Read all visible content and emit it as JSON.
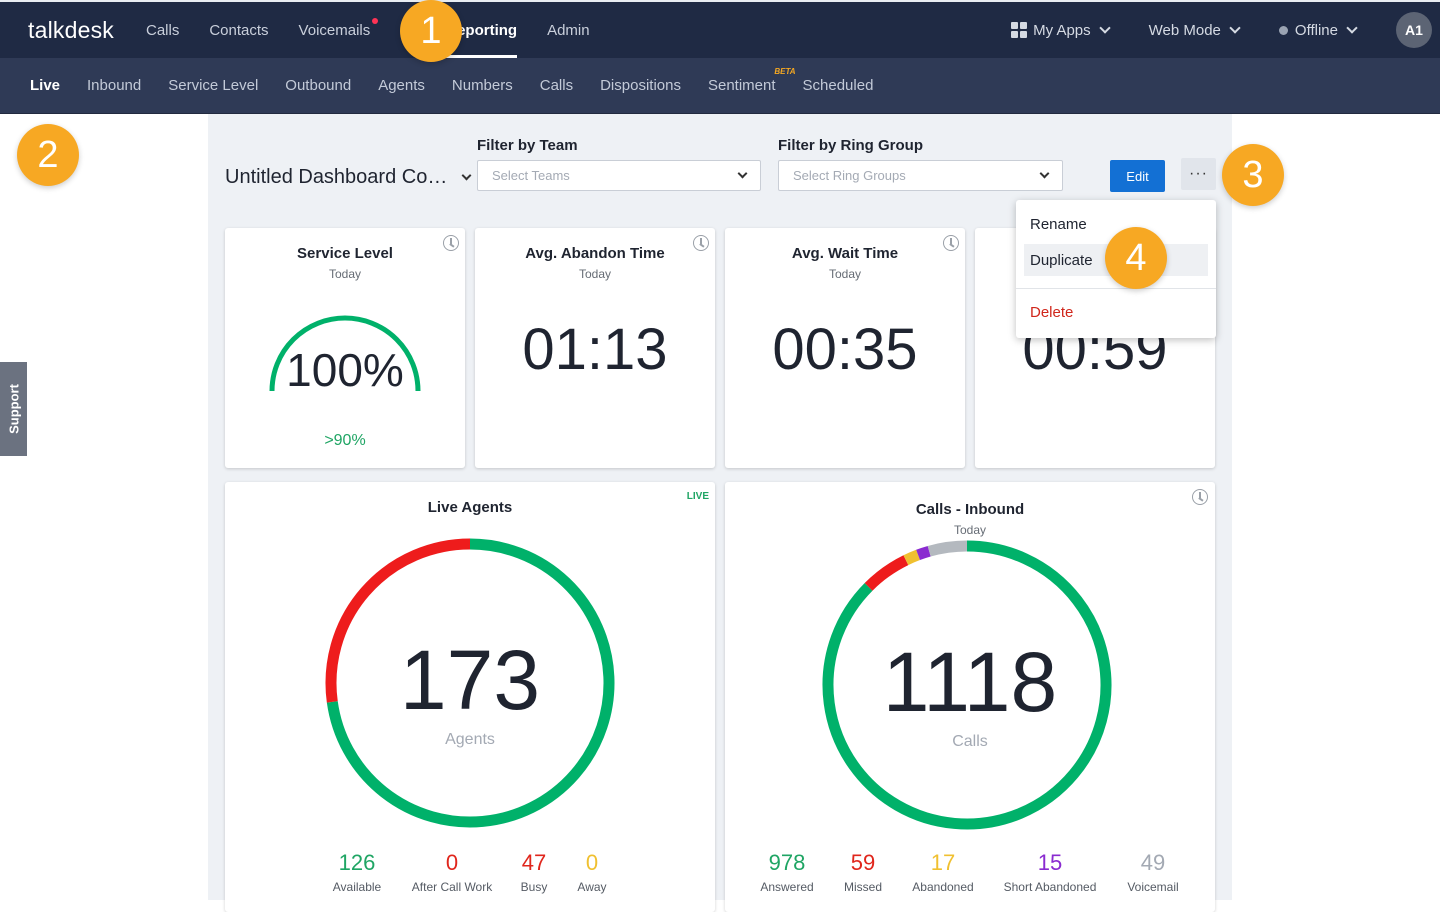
{
  "topbar": {
    "logo": "talkdesk",
    "nav": [
      {
        "label": "Calls",
        "active": false
      },
      {
        "label": "Contacts",
        "active": false
      },
      {
        "label": "Voicemails",
        "active": false,
        "notification_dot": true
      },
      {
        "label": "Reporting",
        "active": true
      },
      {
        "label": "Admin",
        "active": false
      }
    ],
    "my_apps": "My Apps",
    "web_mode": "Web Mode",
    "status": "Offline",
    "avatar": "A1"
  },
  "subnav": {
    "items": [
      {
        "label": "Live",
        "active": true
      },
      {
        "label": "Inbound"
      },
      {
        "label": "Service Level"
      },
      {
        "label": "Outbound"
      },
      {
        "label": "Agents"
      },
      {
        "label": "Numbers"
      },
      {
        "label": "Calls"
      },
      {
        "label": "Dispositions"
      },
      {
        "label": "Sentiment",
        "badge": "BETA"
      },
      {
        "label": "Scheduled"
      }
    ]
  },
  "support_label": "Support",
  "dashboard": {
    "title": "Untitled Dashboard Co…",
    "filter_team_label": "Filter by Team",
    "filter_team_placeholder": "Select Teams",
    "filter_ring_label": "Filter by Ring Group",
    "filter_ring_placeholder": "Select Ring Groups",
    "edit_label": "Edit",
    "more_label": "···"
  },
  "menu": {
    "rename": "Rename",
    "duplicate": "Duplicate",
    "delete": "Delete"
  },
  "cards": {
    "service_level": {
      "title": "Service Level",
      "sub": "Today",
      "value": "100%",
      "target": ">90%",
      "gauge_fraction": 1.0
    },
    "abandon": {
      "title": "Avg. Abandon Time",
      "sub": "Today",
      "value": "01:13"
    },
    "wait": {
      "title": "Avg. Wait Time",
      "sub": "Today",
      "value": "00:35"
    },
    "fourth": {
      "value": "00:59"
    },
    "live_agents": {
      "title": "Live Agents",
      "badge": "LIVE",
      "total": "173",
      "unit": "Agents",
      "stats": [
        {
          "value": "126",
          "label": "Available",
          "color": "#1fa564",
          "count": 126
        },
        {
          "value": "0",
          "label": "After Call Work",
          "color": "#e0261c",
          "count": 0
        },
        {
          "value": "47",
          "label": "Busy",
          "color": "#e0261c",
          "count": 47
        },
        {
          "value": "0",
          "label": "Away",
          "color": "#f0c030",
          "count": 0
        }
      ]
    },
    "calls_inbound": {
      "title": "Calls - Inbound",
      "sub": "Today",
      "total": "1118",
      "unit": "Calls",
      "stats": [
        {
          "value": "978",
          "label": "Answered",
          "color": "#1fa564",
          "count": 978
        },
        {
          "value": "59",
          "label": "Missed",
          "color": "#e0261c",
          "count": 59
        },
        {
          "value": "17",
          "label": "Abandoned",
          "color": "#f0c030",
          "count": 17
        },
        {
          "value": "15",
          "label": "Short Abandoned",
          "color": "#8a2bd0",
          "count": 15
        },
        {
          "value": "49",
          "label": "Voicemail",
          "color": "#a3a9b3",
          "count": 49
        }
      ]
    }
  },
  "steps": [
    "1",
    "2",
    "3",
    "4"
  ],
  "colors": {
    "topbar": "#1f2a44",
    "subnav": "#2f3a56",
    "accent": "#1370d4",
    "green": "#00b16a",
    "red": "#ee1c1c",
    "gray": "#b4b9bf",
    "step": "#f7a823"
  }
}
